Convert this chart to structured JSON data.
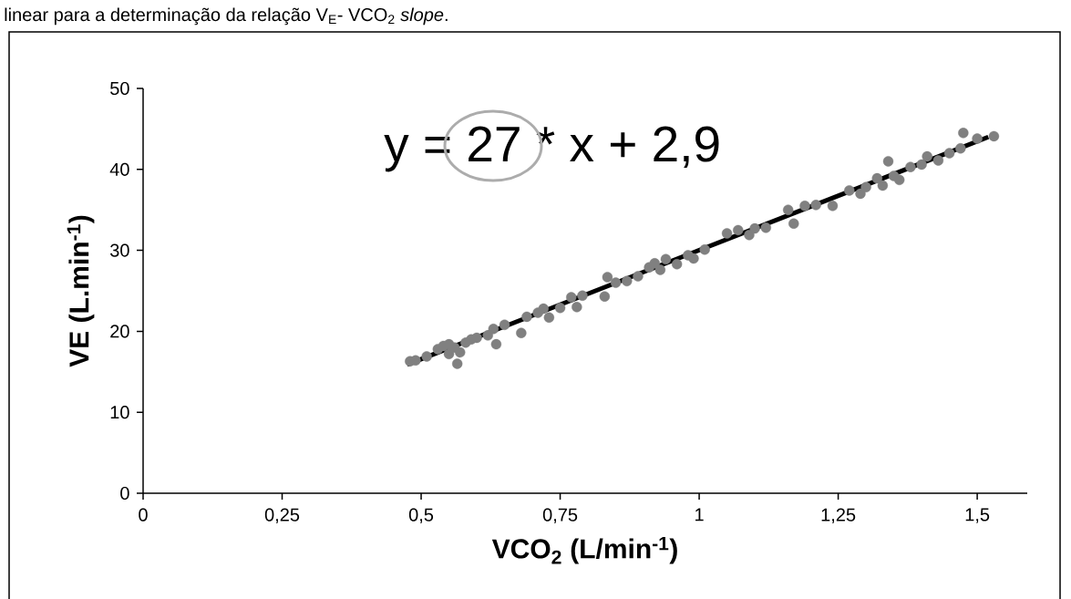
{
  "chart_data": {
    "type": "scatter",
    "xlabel": "VCO$_{2}$ (L/min$^{-1}$)",
    "ylabel": "VE (L.min$^{-1}$)",
    "annotations": [
      "linear para a determinação da relação V$_{E}$- VCO$_{2}$ *slope*.",
      "y = 27 * x + 2,9"
    ],
    "xlim": [
      0,
      1.59
    ],
    "ylim": [
      0,
      50
    ],
    "xticks": [
      0,
      {
        "value": 0.25,
        "label": "0,25"
      },
      {
        "value": 0.5,
        "label": "0,5"
      },
      {
        "value": 0.75,
        "label": "0,75"
      },
      1,
      {
        "value": 1.25,
        "label": "1,25"
      },
      {
        "value": 1.5,
        "label": "1,5"
      }
    ],
    "yticks": [
      0,
      10,
      20,
      30,
      40,
      50
    ],
    "series": [
      {
        "marker": "circle",
        "color": "#808080",
        "x": [
          0.48,
          0.49,
          0.51,
          0.53,
          0.54,
          0.55,
          0.55,
          0.56,
          0.565,
          0.57,
          0.58,
          0.59,
          0.6,
          0.62,
          0.63,
          0.635,
          0.65,
          0.68,
          0.69,
          0.71,
          0.72,
          0.73,
          0.75,
          0.77,
          0.78,
          0.79,
          0.83,
          0.835,
          0.85,
          0.87,
          0.89,
          0.91,
          0.92,
          0.93,
          0.94,
          0.96,
          0.98,
          0.99,
          1.01,
          1.05,
          1.07,
          1.09,
          1.1,
          1.12,
          1.16,
          1.17,
          1.19,
          1.21,
          1.24,
          1.27,
          1.29,
          1.3,
          1.32,
          1.33,
          1.34,
          1.35,
          1.36,
          1.38,
          1.4,
          1.41,
          1.43,
          1.45,
          1.47,
          1.475,
          1.5,
          1.53
        ],
        "values": [
          16.3,
          16.4,
          16.9,
          17.8,
          18.2,
          18.4,
          17.2,
          18.0,
          16.0,
          17.4,
          18.6,
          19.0,
          19.2,
          19.5,
          20.3,
          18.4,
          20.8,
          19.8,
          21.8,
          22.3,
          22.8,
          21.7,
          22.9,
          24.2,
          23.0,
          24.4,
          24.3,
          26.7,
          26.0,
          26.2,
          26.8,
          27.9,
          28.4,
          27.6,
          28.9,
          28.3,
          29.4,
          29.0,
          30.1,
          32.1,
          32.5,
          31.9,
          32.7,
          32.8,
          35.0,
          33.3,
          35.5,
          35.6,
          35.5,
          37.4,
          37.0,
          37.8,
          38.9,
          38.0,
          41.0,
          39.2,
          38.7,
          40.3,
          40.6,
          41.6,
          41.1,
          42.0,
          42.6,
          44.5,
          43.8,
          44.1
        ]
      },
      {
        "type": "line",
        "marker": "none",
        "line_style": "solid",
        "color": "#000000",
        "x": [
          0.475,
          1.52
        ],
        "values": [
          15.9,
          44.0
        ]
      }
    ]
  }
}
